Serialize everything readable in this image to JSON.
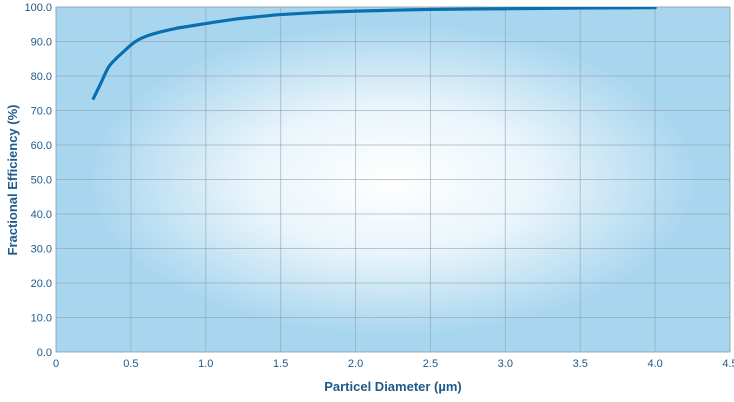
{
  "chart_data": {
    "type": "line",
    "title": "",
    "xlabel": "Particel Diameter (µm)",
    "ylabel": "Fractional Efficiency (%)",
    "xlim": [
      0,
      4.5
    ],
    "ylim": [
      0,
      100
    ],
    "grid": true,
    "x_ticks": [
      "0",
      "0.5",
      "1.0",
      "1.5",
      "2.0",
      "2.5",
      "3.0",
      "3.5",
      "4.0",
      "4.5"
    ],
    "y_ticks": [
      "0.0",
      "10.0",
      "20.0",
      "30.0",
      "40.0",
      "50.0",
      "60.0",
      "70.0",
      "80.0",
      "90.0",
      "100.0"
    ],
    "series": [
      {
        "color": "#0a6fb0",
        "x": [
          0.25,
          0.3,
          0.35,
          0.4,
          0.45,
          0.5,
          0.55,
          0.6,
          0.7,
          0.8,
          0.9,
          1.0,
          1.2,
          1.4,
          1.5,
          1.75,
          2.0,
          2.5,
          3.0,
          3.5,
          4.0
        ],
        "y": [
          73.5,
          78.0,
          82.5,
          85.0,
          87.0,
          89.0,
          90.5,
          91.5,
          92.8,
          93.8,
          94.5,
          95.2,
          96.5,
          97.4,
          97.8,
          98.4,
          98.8,
          99.3,
          99.5,
          99.7,
          99.8
        ]
      }
    ]
  },
  "colors": {
    "plot_edge": "#a9d6ef",
    "plot_center": "#ffffff",
    "grid": "#8c9aa6",
    "text": "#1e5a8a",
    "line": "#0a6fb0"
  }
}
